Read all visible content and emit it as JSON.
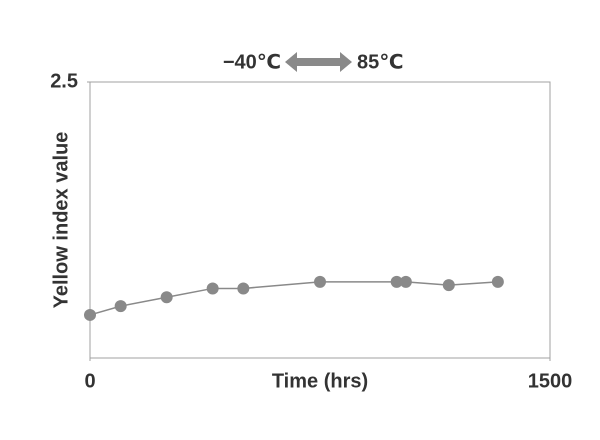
{
  "chart_data": {
    "type": "line",
    "annotation_left": "−40℃",
    "annotation_right": "85℃",
    "xlabel": "Time (hrs)",
    "ylabel": "Yellow index value",
    "x": [
      0,
      100,
      250,
      400,
      500,
      750,
      1000,
      1030,
      1170,
      1330
    ],
    "series": [
      {
        "name": "Yellow index",
        "color": "#898989",
        "values": [
          0.39,
          0.47,
          0.55,
          0.63,
          0.63,
          0.69,
          0.69,
          0.69,
          0.66,
          0.69
        ]
      }
    ],
    "xlim": [
      0,
      1500
    ],
    "xticks": [
      0,
      1500
    ],
    "ylim": [
      0,
      2.5
    ],
    "yticks": [
      2.5
    ]
  }
}
